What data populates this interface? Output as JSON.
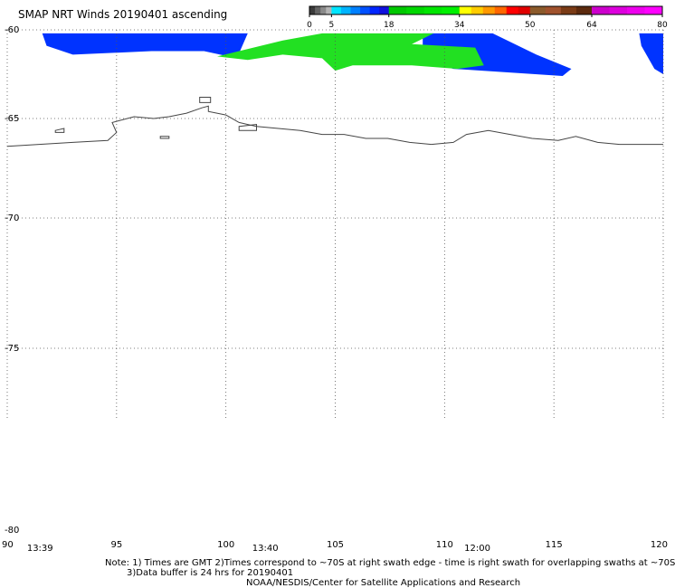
{
  "title": "SMAP NRT Winds 20190401 ascending",
  "colorbar": {
    "labels": [
      "0",
      "5",
      "18",
      "34",
      "50",
      "64",
      "80"
    ],
    "bins": [
      {
        "from": 0,
        "to": 5,
        "colors": [
          "#3a3a3a",
          "#636363",
          "#8a8a8a",
          "#b4b4b4"
        ]
      },
      {
        "from": 5,
        "to": 18,
        "colors": [
          "#00e5ff",
          "#00b4ff",
          "#0080ff",
          "#0050ff",
          "#0026ff",
          "#1010dd"
        ]
      },
      {
        "from": 18,
        "to": 34,
        "colors": [
          "#00c800",
          "#00d700",
          "#00e600",
          "#00f000"
        ]
      },
      {
        "from": 34,
        "to": 50,
        "colors": [
          "#ffff00",
          "#ffcc00",
          "#ff9900",
          "#ff6600",
          "#ff0000",
          "#e00000"
        ]
      },
      {
        "from": 50,
        "to": 64,
        "colors": [
          "#8b5a2b",
          "#a0522d",
          "#7a3b16",
          "#5c2a0e"
        ]
      },
      {
        "from": 64,
        "to": 80,
        "colors": [
          "#cc00cc",
          "#dd00dd",
          "#ee00ee",
          "#ff00ff"
        ]
      }
    ]
  },
  "axes": {
    "lat_ticks": [
      "-60",
      "-65",
      "-70",
      "-75",
      "-80"
    ],
    "lon_ticks": [
      "90",
      "95",
      "100",
      "105",
      "110",
      "115",
      "120"
    ],
    "lat_range": [
      -60,
      -80
    ],
    "lon_range": [
      90,
      120
    ],
    "grid": "dotted"
  },
  "times": [
    "13:39",
    "13:40",
    "12:00"
  ],
  "wind_swaths": [
    {
      "speed_class": "5-18",
      "color": "#0033ff",
      "polygon": [
        [
          91.6,
          -60.2
        ],
        [
          101.0,
          -60.2
        ],
        [
          100.5,
          -61.6
        ],
        [
          99.0,
          -61.2
        ],
        [
          96.6,
          -61.2
        ],
        [
          93.0,
          -61.4
        ],
        [
          91.8,
          -60.9
        ]
      ]
    },
    {
      "speed_class": "5-18",
      "color": "#0033ff",
      "polygon": [
        [
          109.0,
          -60.2
        ],
        [
          112.2,
          -60.2
        ],
        [
          114.2,
          -61.4
        ],
        [
          115.8,
          -62.2
        ],
        [
          115.4,
          -62.6
        ],
        [
          110.4,
          -62.2
        ],
        [
          109.0,
          -61.6
        ]
      ]
    },
    {
      "speed_class": "5-18",
      "color": "#0033ff",
      "polygon": [
        [
          118.9,
          -60.2
        ],
        [
          120.0,
          -60.2
        ],
        [
          120.0,
          -62.5
        ],
        [
          119.6,
          -62.2
        ],
        [
          119.0,
          -60.9
        ]
      ]
    },
    {
      "speed_class": "18-34",
      "color": "#22e022",
      "polygon": [
        [
          99.6,
          -61.5
        ],
        [
          102.6,
          -60.6
        ],
        [
          104.4,
          -60.2
        ],
        [
          109.5,
          -60.2
        ],
        [
          108.5,
          -60.8
        ],
        [
          111.4,
          -61.0
        ],
        [
          111.8,
          -62.0
        ],
        [
          110.6,
          -62.2
        ],
        [
          108.5,
          -62.0
        ],
        [
          105.8,
          -62.0
        ],
        [
          105.0,
          -62.3
        ],
        [
          104.4,
          -61.6
        ],
        [
          102.6,
          -61.4
        ],
        [
          101.0,
          -61.7
        ]
      ]
    }
  ],
  "coastline": [
    [
      90.0,
      -66.4
    ],
    [
      93.0,
      -66.2
    ],
    [
      94.6,
      -66.1
    ],
    [
      95.0,
      -65.7
    ],
    [
      94.8,
      -65.2
    ],
    [
      95.8,
      -64.9
    ],
    [
      96.7,
      -65.0
    ],
    [
      97.4,
      -64.9
    ],
    [
      98.2,
      -64.7
    ],
    [
      98.9,
      -64.4
    ],
    [
      99.2,
      -64.3
    ],
    [
      99.2,
      -64.6
    ],
    [
      100.0,
      -64.8
    ],
    [
      100.6,
      -65.2
    ],
    [
      101.4,
      -65.4
    ],
    [
      102.4,
      -65.5
    ],
    [
      103.4,
      -65.6
    ],
    [
      104.4,
      -65.8
    ],
    [
      105.4,
      -65.8
    ],
    [
      106.4,
      -66.0
    ],
    [
      107.4,
      -66.0
    ],
    [
      108.4,
      -66.2
    ],
    [
      109.4,
      -66.3
    ],
    [
      110.4,
      -66.2
    ],
    [
      111.0,
      -65.8
    ],
    [
      112.0,
      -65.6
    ],
    [
      113.0,
      -65.8
    ],
    [
      114.0,
      -66.0
    ],
    [
      115.2,
      -66.1
    ],
    [
      116.0,
      -65.9
    ],
    [
      117.0,
      -66.2
    ],
    [
      118.0,
      -66.3
    ],
    [
      119.0,
      -66.3
    ],
    [
      120.0,
      -66.3
    ]
  ],
  "islands": [
    [
      [
        92.2,
        -65.6
      ],
      [
        92.6,
        -65.5
      ],
      [
        92.6,
        -65.7
      ],
      [
        92.2,
        -65.7
      ]
    ],
    [
      [
        97.0,
        -65.9
      ],
      [
        97.4,
        -65.9
      ],
      [
        97.4,
        -66.0
      ],
      [
        97.0,
        -66.0
      ]
    ],
    [
      [
        98.8,
        -63.8
      ],
      [
        99.3,
        -63.8
      ],
      [
        99.3,
        -64.1
      ],
      [
        98.8,
        -64.1
      ]
    ],
    [
      [
        100.6,
        -65.4
      ],
      [
        101.4,
        -65.3
      ],
      [
        101.4,
        -65.6
      ],
      [
        100.6,
        -65.6
      ]
    ]
  ],
  "notes": [
    "Note: 1) Times are GMT  2)Times correspond to ~70S at right swath edge - time is right swath for overlapping swaths at ~70S",
    "3)Data buffer is 24 hrs for 20190401",
    "NOAA/NESDIS/Center for Satellite Applications and Research"
  ]
}
